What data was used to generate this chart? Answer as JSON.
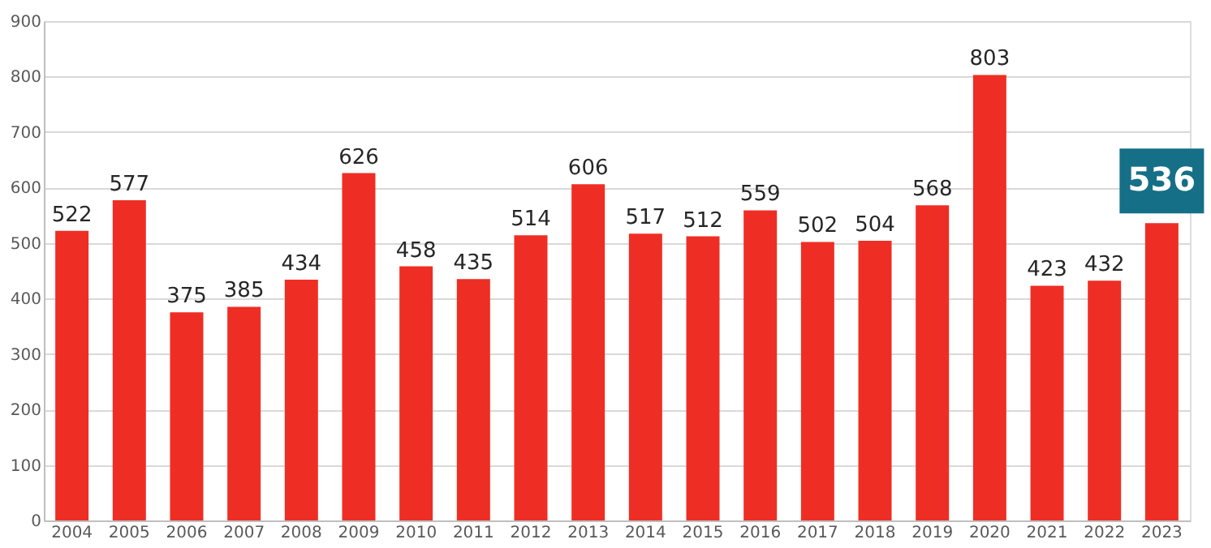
{
  "chart_data": {
    "type": "bar",
    "categories": [
      "2004",
      "2005",
      "2006",
      "2007",
      "2008",
      "2009",
      "2010",
      "2011",
      "2012",
      "2013",
      "2014",
      "2015",
      "2016",
      "2017",
      "2018",
      "2019",
      "2020",
      "2021",
      "2022",
      "2023"
    ],
    "values": [
      522,
      577,
      375,
      385,
      434,
      626,
      458,
      435,
      514,
      606,
      517,
      512,
      559,
      502,
      504,
      568,
      803,
      423,
      432,
      536
    ],
    "value_labels": [
      "522",
      "577",
      "375",
      "385",
      "434",
      "626",
      "458",
      "435",
      "514",
      "606",
      "517",
      "512",
      "559",
      "502",
      "504",
      "568",
      "803",
      "423",
      "432",
      null
    ],
    "annotations": [
      {
        "text": "536",
        "x": "2023",
        "y": 536
      }
    ],
    "color": "#ee2e24",
    "ylim": [
      0,
      900
    ],
    "yticks": [
      0,
      100,
      200,
      300,
      400,
      500,
      600,
      700,
      800,
      900
    ],
    "grid": "y"
  }
}
